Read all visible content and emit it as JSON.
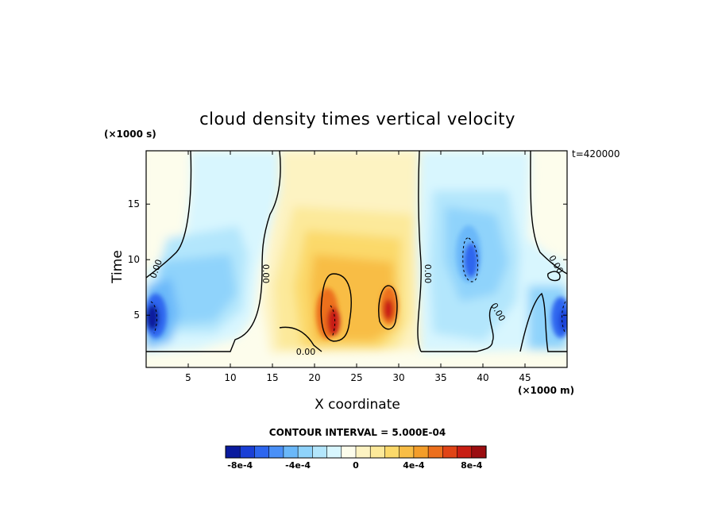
{
  "chart_data": {
    "type": "heatmap",
    "title": "cloud density times vertical velocity",
    "xlabel": "X coordinate",
    "ylabel": "Time",
    "x_unit": "(×1000 m)",
    "y_unit": "(×1000 s)",
    "time_label": "t=420000",
    "xlim": [
      0,
      50
    ],
    "ylim": [
      0.3,
      19.8
    ],
    "x_ticks": [
      5,
      10,
      15,
      20,
      25,
      30,
      35,
      40,
      45
    ],
    "y_ticks": [
      5,
      10,
      15
    ],
    "contour_interval_label": "CONTOUR INTERVAL = 5.000E-04",
    "contour_label": "0.00",
    "colorbar": {
      "colors": [
        "#0a1a9e",
        "#1a3fd6",
        "#2d66ef",
        "#4a90f7",
        "#6ab8f9",
        "#8fd3fb",
        "#b3e6fc",
        "#d8f6fe",
        "#fdfdec",
        "#fdf3c2",
        "#fce99a",
        "#fbd96a",
        "#f8bd45",
        "#f39d2a",
        "#ec6f1d",
        "#e04416",
        "#c81e13",
        "#9b0d10"
      ],
      "tick_labels": [
        "-8e-4",
        "-4e-4",
        "0",
        "4e-4",
        "8e-4"
      ],
      "tick_values": [
        -0.0008,
        -0.0004,
        0,
        0.0004,
        0.0008
      ],
      "min": -0.0009,
      "max": 0.0009
    }
  }
}
